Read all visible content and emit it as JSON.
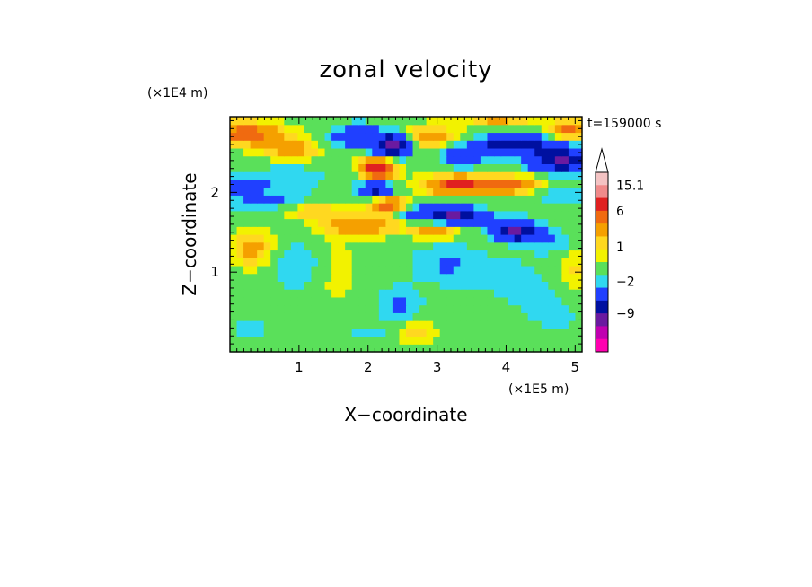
{
  "chart_data": {
    "type": "heatmap",
    "title": "zonal velocity",
    "xlabel": "X−coordinate",
    "ylabel": "Z−coordinate",
    "x_unit_label": "(×1E5 m)",
    "y_unit_label": "(×1E4 m)",
    "time_label": "t=159000 s",
    "xlim": [
      0,
      5.1
    ],
    "ylim": [
      0,
      2.95
    ],
    "x_ticks": [
      1,
      2,
      3,
      4,
      5
    ],
    "y_ticks": [
      1,
      2
    ],
    "x_tick_labels": [
      "1",
      "2",
      "3",
      "4",
      "5"
    ],
    "y_tick_labels": [
      "1",
      "2"
    ],
    "colorbar": {
      "levels_top_to_bottom": [
        "#f4c3c3",
        "#f08a8a",
        "#e02020",
        "#f06a10",
        "#f5a000",
        "#ffd820",
        "#f2f200",
        "#5ae05a",
        "#30d8f0",
        "#2040ff",
        "#0010a0",
        "#6a1aa0",
        "#c000b0",
        "#ff00b0"
      ],
      "labels": [
        "15.1",
        "6",
        "1",
        "−2",
        "−9"
      ],
      "label_level_index": [
        1,
        3,
        5.8,
        8.5,
        11
      ],
      "extend_top": true
    },
    "field": {
      "nx": 52,
      "nz": 30,
      "background_value": 0.3,
      "features": [
        {
          "x": 0.2,
          "z": 2.75,
          "sx": 0.6,
          "sz": 0.15,
          "amp": 5
        },
        {
          "x": 0.9,
          "z": 2.55,
          "sx": 0.5,
          "sz": 0.15,
          "amp": 3.5
        },
        {
          "x": 1.7,
          "z": 2.65,
          "sx": 0.5,
          "sz": 0.12,
          "amp": -2.5
        },
        {
          "x": 1.85,
          "z": 2.75,
          "sx": 0.3,
          "sz": 0.12,
          "amp": -4
        },
        {
          "x": 2.35,
          "z": 2.6,
          "sx": 0.25,
          "sz": 0.15,
          "amp": -12
        },
        {
          "x": 2.15,
          "z": 2.3,
          "sx": 0.25,
          "sz": 0.15,
          "amp": 8
        },
        {
          "x": 2.85,
          "z": 2.7,
          "sx": 0.5,
          "sz": 0.15,
          "amp": 4
        },
        {
          "x": 3.35,
          "z": 2.45,
          "sx": 0.25,
          "sz": 0.12,
          "amp": -7
        },
        {
          "x": 4.1,
          "z": 2.6,
          "sx": 0.55,
          "sz": 0.12,
          "amp": -9
        },
        {
          "x": 4.8,
          "z": 2.4,
          "sx": 0.45,
          "sz": 0.15,
          "amp": -10
        },
        {
          "x": 4.9,
          "z": 2.8,
          "sx": 0.3,
          "sz": 0.12,
          "amp": 5
        },
        {
          "x": 3.9,
          "z": 2.9,
          "sx": 0.5,
          "sz": 0.08,
          "amp": 3
        },
        {
          "x": 0.2,
          "z": 2.1,
          "sx": 0.3,
          "sz": 0.1,
          "amp": -6
        },
        {
          "x": 0.85,
          "z": 2.2,
          "sx": 0.6,
          "sz": 0.18,
          "amp": -1.8
        },
        {
          "x": 2.1,
          "z": 2.05,
          "sx": 0.22,
          "sz": 0.1,
          "amp": -8
        },
        {
          "x": 3.3,
          "z": 2.1,
          "sx": 0.5,
          "sz": 0.13,
          "amp": 6
        },
        {
          "x": 4.2,
          "z": 2.1,
          "sx": 0.5,
          "sz": 0.12,
          "amp": 4.5
        },
        {
          "x": 4.75,
          "z": 2.0,
          "sx": 0.4,
          "sz": 0.13,
          "amp": -2.5
        },
        {
          "x": 2.3,
          "z": 1.85,
          "sx": 0.3,
          "sz": 0.1,
          "amp": 6
        },
        {
          "x": 1.2,
          "z": 1.8,
          "sx": 0.4,
          "sz": 0.12,
          "amp": 3
        },
        {
          "x": 2.7,
          "z": 1.75,
          "sx": 0.3,
          "sz": 0.1,
          "amp": -4
        },
        {
          "x": 3.25,
          "z": 1.72,
          "sx": 0.35,
          "sz": 0.1,
          "amp": -10
        },
        {
          "x": 0.6,
          "z": 1.9,
          "sx": 0.7,
          "sz": 0.1,
          "amp": -3
        },
        {
          "x": 3.9,
          "z": 1.65,
          "sx": 0.5,
          "sz": 0.14,
          "amp": -2
        },
        {
          "x": 4.6,
          "z": 1.4,
          "sx": 0.35,
          "sz": 0.15,
          "amp": -2.5
        },
        {
          "x": 4.15,
          "z": 1.5,
          "sx": 0.3,
          "sz": 0.1,
          "amp": -10
        },
        {
          "x": 3.0,
          "z": 1.52,
          "sx": 0.35,
          "sz": 0.1,
          "amp": 4
        },
        {
          "x": 1.9,
          "z": 1.6,
          "sx": 0.6,
          "sz": 0.15,
          "amp": 4
        },
        {
          "x": 0.35,
          "z": 1.3,
          "sx": 0.3,
          "sz": 0.25,
          "amp": 3.5
        },
        {
          "x": 0.95,
          "z": 1.1,
          "sx": 0.4,
          "sz": 0.3,
          "amp": -2
        },
        {
          "x": 3.15,
          "z": 1.1,
          "sx": 0.5,
          "sz": 0.25,
          "amp": -2.5
        },
        {
          "x": 2.45,
          "z": 0.6,
          "sx": 0.3,
          "sz": 0.2,
          "amp": -3
        },
        {
          "x": 4.1,
          "z": 0.9,
          "sx": 0.5,
          "sz": 0.3,
          "amp": -1.4
        },
        {
          "x": 2.1,
          "z": 0.25,
          "sx": 0.5,
          "sz": 0.12,
          "amp": -1.2
        },
        {
          "x": 0.3,
          "z": 0.3,
          "sx": 0.3,
          "sz": 0.1,
          "amp": -1.5
        },
        {
          "x": 2.65,
          "z": 0.25,
          "sx": 0.3,
          "sz": 0.12,
          "amp": 3
        },
        {
          "x": 4.7,
          "z": 0.5,
          "sx": 0.5,
          "sz": 0.3,
          "amp": -1.2
        },
        {
          "x": 1.55,
          "z": 1.0,
          "sx": 0.3,
          "sz": 0.45,
          "amp": 1.3
        },
        {
          "x": 5.0,
          "z": 1.0,
          "sx": 0.2,
          "sz": 0.3,
          "amp": 2
        }
      ]
    }
  },
  "colors": {
    "frame": "#000000",
    "background": "#ffffff"
  }
}
